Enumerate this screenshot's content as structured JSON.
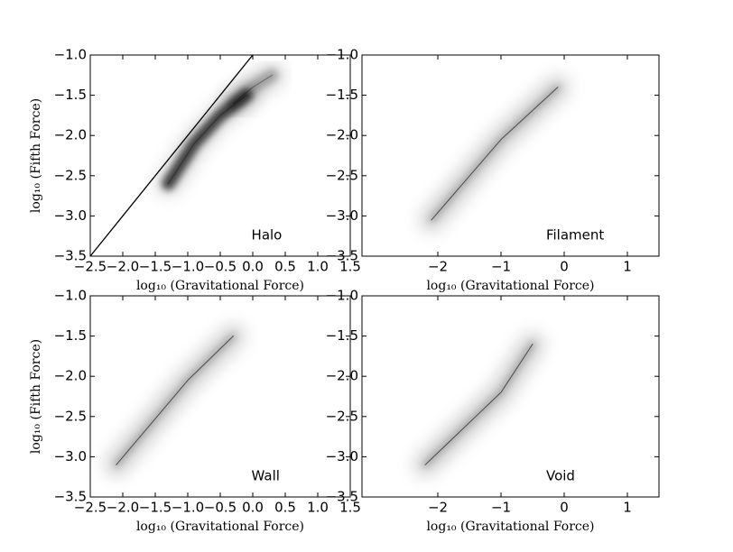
{
  "chart_data": [
    {
      "type": "density",
      "annotation": "Halo",
      "xlabel": "log₁₀ (Gravitational Force)",
      "ylabel": "log₁₀ (Fifth Force)",
      "xlim": [
        -2.5,
        1.5
      ],
      "ylim": [
        -3.5,
        -1.0
      ],
      "xticks": [
        {
          "value": -2.5,
          "label": "−2.5"
        },
        {
          "value": -2.0,
          "label": "−2.0"
        },
        {
          "value": -1.5,
          "label": "−1.5"
        },
        {
          "value": -1.0,
          "label": "−1.0"
        },
        {
          "value": -0.5,
          "label": "−0.5"
        },
        {
          "value": 0.0,
          "label": "0.0"
        },
        {
          "value": 0.5,
          "label": "0.5"
        },
        {
          "value": 1.0,
          "label": "1.0"
        },
        {
          "value": 1.5,
          "label": "1.5"
        }
      ],
      "yticks": [
        {
          "value": -3.5,
          "label": "−3.5"
        },
        {
          "value": -3.0,
          "label": "−3.0"
        },
        {
          "value": -2.5,
          "label": "−2.5"
        },
        {
          "value": -2.0,
          "label": "−2.0"
        },
        {
          "value": -1.5,
          "label": "−1.5"
        },
        {
          "value": -1.0,
          "label": "−1.0"
        }
      ],
      "series": [
        {
          "kind": "density",
          "color": "#000000",
          "x": [
            -1.3,
            -0.9,
            -0.5,
            -0.1
          ],
          "values": [
            -2.6,
            -2.1,
            -1.75,
            -1.5
          ]
        },
        {
          "kind": "density",
          "color": "#000000",
          "x": [
            -0.3,
            0.0,
            0.3
          ],
          "values": [
            -1.6,
            -1.4,
            -1.25
          ]
        },
        {
          "kind": "line",
          "color": "#000000",
          "x": [
            -2.5,
            0.0
          ],
          "values": [
            -3.5,
            -1.0
          ]
        }
      ]
    },
    {
      "type": "density",
      "annotation": "Filament",
      "xlabel": "log₁₀ (Gravitational Force)",
      "xlim": [
        -3.2,
        1.5
      ],
      "ylim": [
        -3.5,
        -1.0
      ],
      "xticks": [
        {
          "value": -2,
          "label": "−2"
        },
        {
          "value": -1,
          "label": "−1"
        },
        0,
        1
      ],
      "yticks": [
        {
          "value": -3.5,
          "label": "−3.5"
        },
        {
          "value": -3.0,
          "label": "−3.0"
        },
        {
          "value": -2.5,
          "label": "−2.5"
        },
        {
          "value": -2.0,
          "label": "−2.0"
        },
        {
          "value": -1.5,
          "label": "−1.5"
        },
        {
          "value": -1.0,
          "label": "−1.0"
        }
      ],
      "series": [
        {
          "kind": "density",
          "color": "#000000",
          "x": [
            -2.1,
            -1.0,
            -0.1
          ],
          "values": [
            -3.05,
            -2.05,
            -1.4
          ]
        }
      ]
    },
    {
      "type": "density",
      "annotation": "Wall",
      "xlabel": "log₁₀ (Gravitational Force)",
      "ylabel": "log₁₀ (Fifth Force)",
      "xlim": [
        -2.5,
        1.5
      ],
      "ylim": [
        -3.5,
        -1.0
      ],
      "xticks": [
        {
          "value": -2.5,
          "label": "−2.5"
        },
        {
          "value": -2.0,
          "label": "−2.0"
        },
        {
          "value": -1.5,
          "label": "−1.5"
        },
        {
          "value": -1.0,
          "label": "−1.0"
        },
        {
          "value": -0.5,
          "label": "−0.5"
        },
        {
          "value": 0.0,
          "label": "0.0"
        },
        {
          "value": 0.5,
          "label": "0.5"
        },
        {
          "value": 1.0,
          "label": "1.0"
        },
        {
          "value": 1.5,
          "label": "1.5"
        }
      ],
      "yticks": [
        {
          "value": -3.5,
          "label": "−3.5"
        },
        {
          "value": -3.0,
          "label": "−3.0"
        },
        {
          "value": -2.5,
          "label": "−2.5"
        },
        {
          "value": -2.0,
          "label": "−2.0"
        },
        {
          "value": -1.5,
          "label": "−1.5"
        },
        {
          "value": -1.0,
          "label": "−1.0"
        }
      ],
      "series": [
        {
          "kind": "density",
          "color": "#000000",
          "x": [
            -2.1,
            -1.0,
            -0.3
          ],
          "values": [
            -3.1,
            -2.05,
            -1.5
          ]
        }
      ]
    },
    {
      "type": "density",
      "annotation": "Void",
      "xlabel": "log₁₀ (Gravitational Force)",
      "xlim": [
        -3.2,
        1.5
      ],
      "ylim": [
        -3.5,
        -1.0
      ],
      "xticks": [
        {
          "value": -2,
          "label": "−2"
        },
        {
          "value": -1,
          "label": "−1"
        },
        0,
        1
      ],
      "yticks": [
        {
          "value": -3.5,
          "label": "−3.5"
        },
        {
          "value": -3.0,
          "label": "−3.0"
        },
        {
          "value": -2.5,
          "label": "−2.5"
        },
        {
          "value": -2.0,
          "label": "−2.0"
        },
        {
          "value": -1.5,
          "label": "−1.5"
        },
        {
          "value": -1.0,
          "label": "−1.0"
        }
      ],
      "series": [
        {
          "kind": "density",
          "color": "#000000",
          "x": [
            -2.2,
            -1.0,
            -0.5
          ],
          "values": [
            -3.1,
            -2.2,
            -1.6
          ]
        }
      ]
    }
  ]
}
